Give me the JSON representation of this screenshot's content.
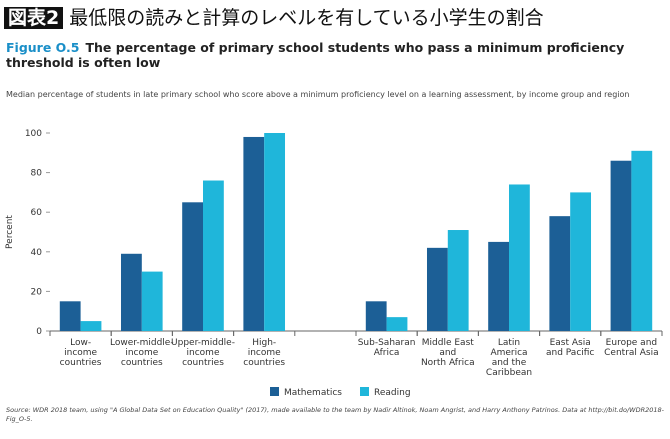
{
  "banner": {
    "tag": "図表2",
    "title": "最低限の読みと計算のレベルを有している小学生の割合"
  },
  "chart_data": {
    "type": "bar",
    "figure_label": "Figure O.5",
    "title": "The percentage of primary school students who pass a minimum proficiency threshold is often low",
    "subtitle": "Median percentage of students in late primary school who score above a minimum proficiency level on a learning assessment, by income group and region",
    "y_label": "Percent",
    "categories": [
      "Low-\nincome\ncountries",
      "Lower-middle-\nincome\ncountries",
      "Upper-middle-\nincome\ncountries",
      "High-\nincome\ncountries",
      null,
      "Sub-Saharan\nAfrica",
      "Middle East\nand\nNorth Africa",
      "Latin\nAmerica\nand the\nCaribbean",
      "East Asia\nand Pacific",
      "Europe and\nCentral Asia"
    ],
    "series": [
      {
        "name": "Mathematics",
        "color": "#1c5f96",
        "values": [
          15,
          39,
          65,
          98,
          null,
          15,
          42,
          45,
          58,
          86
        ]
      },
      {
        "name": "Reading",
        "color": "#1fb6da",
        "values": [
          5,
          30,
          76,
          100,
          null,
          7,
          51,
          74,
          70,
          91
        ]
      }
    ],
    "ylim": [
      0,
      100
    ],
    "yticks": [
      0,
      20,
      40,
      60,
      80,
      100
    ],
    "grid": false,
    "legend": "bottom",
    "source": "Source: WDR 2018 team, using \"A Global Data Set on Education Quality\" (2017), made available to the team by Nadir Altinok, Noam Angrist, and Harry Anthony Patrinos. Data at http://bit.do/WDR2018-Fig_O-5."
  }
}
